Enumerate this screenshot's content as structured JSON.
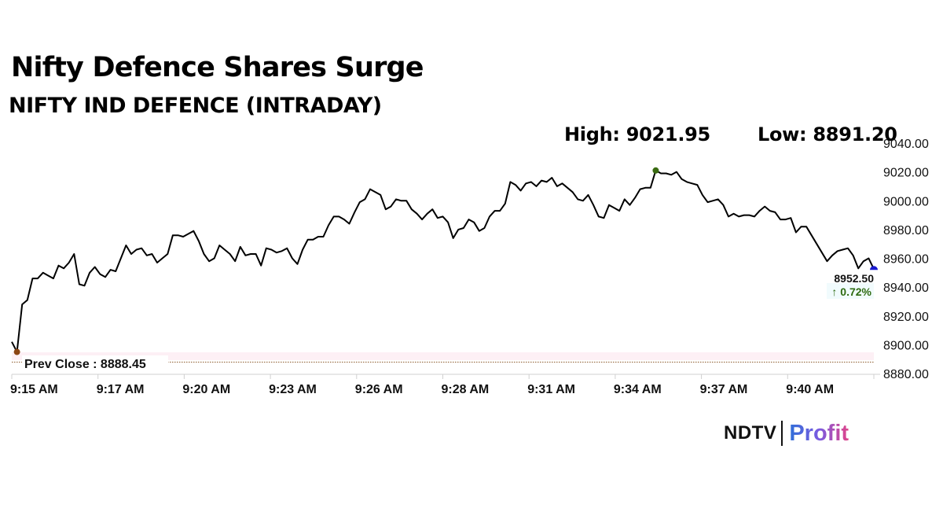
{
  "header": {
    "title": "Nifty Defence Shares Surge",
    "subtitle": "NIFTY IND DEFENCE (INTRADAY)",
    "high_label": "High: 9021.95",
    "low_label": "Low: 8891.20"
  },
  "last": {
    "value": "8952.50",
    "change": "↑ 0.72%"
  },
  "prev_close": {
    "label": "Prev Close : 8888.45",
    "value": 8888.45
  },
  "logo": {
    "brand": "NDTV",
    "product": "Profit"
  },
  "colors": {
    "line": "#000000",
    "prev_close_line": "#8b5a2b",
    "high_marker": "#3a6b12",
    "low_marker": "#8b4513",
    "last_marker": "#1a1ad0",
    "change_up": "#2e6b12",
    "axis": "#d0d0d0"
  },
  "chart_data": {
    "type": "line",
    "title": "NIFTY IND DEFENCE (INTRADAY)",
    "xlabel": "",
    "ylabel": "",
    "ylim": [
      8880,
      9040
    ],
    "y_ticks": [
      "9040.00",
      "9020.00",
      "9000.00",
      "8980.00",
      "8960.00",
      "8940.00",
      "8920.00",
      "8900.00",
      "8880.00"
    ],
    "x_ticks": [
      "9:15 AM",
      "9:17 AM",
      "9:20 AM",
      "9:23 AM",
      "9:26 AM",
      "9:28 AM",
      "9:31 AM",
      "9:34 AM",
      "9:37 AM",
      "9:40 AM"
    ],
    "grid": false,
    "legend": "none",
    "annotations": {
      "high": 9021.95,
      "low": 8891.2,
      "prev_close": 8888.45,
      "last": 8952.5,
      "change_pct": 0.72
    },
    "series": [
      {
        "name": "NIFTY IND DEFENCE",
        "values": [
          8902,
          8895,
          8928,
          8931,
          8946,
          8946,
          8950,
          8948,
          8946,
          8955,
          8953,
          8957,
          8963,
          8942,
          8941,
          8950,
          8954,
          8949,
          8947,
          8952,
          8951,
          8960,
          8969,
          8963,
          8966,
          8967,
          8962,
          8963,
          8957,
          8960,
          8963,
          8976,
          8976,
          8975,
          8977,
          8979,
          8972,
          8963,
          8958,
          8960,
          8969,
          8966,
          8963,
          8958,
          8968,
          8962,
          8963,
          8963,
          8955,
          8967,
          8966,
          8964,
          8965,
          8967,
          8960,
          8956,
          8966,
          8973,
          8973,
          8975,
          8975,
          8983,
          8989,
          8989,
          8987,
          8984,
          8992,
          8999,
          9001,
          9008,
          9006,
          9004,
          8994,
          8996,
          9001,
          9000,
          9000,
          8994,
          8991,
          8987,
          8991,
          8994,
          8988,
          8989,
          8985,
          8974,
          8980,
          8981,
          8987,
          8985,
          8979,
          8981,
          8989,
          8993,
          8993,
          8998,
          9013,
          9011,
          9007,
          9012,
          9013,
          9010,
          9014,
          9013,
          9016,
          9010,
          9012,
          9009,
          9006,
          9001,
          9000,
          9004,
          8997,
          8989,
          8988,
          8997,
          8995,
          8993,
          9001,
          8997,
          9002,
          9008,
          9009,
          9009,
          9021,
          9019,
          9019,
          9018,
          9020,
          9015,
          9013,
          9012,
          9011,
          9004,
          8999,
          9000,
          9001,
          8997,
          8989,
          8991,
          8989,
          8990,
          8990,
          8989,
          8993,
          8996,
          8993,
          8992,
          8987,
          8987,
          8988,
          8978,
          8982,
          8982,
          8976,
          8970,
          8964,
          8958,
          8962,
          8965,
          8966,
          8967,
          8962,
          8953,
          8958,
          8960,
          8952.5
        ]
      }
    ]
  }
}
